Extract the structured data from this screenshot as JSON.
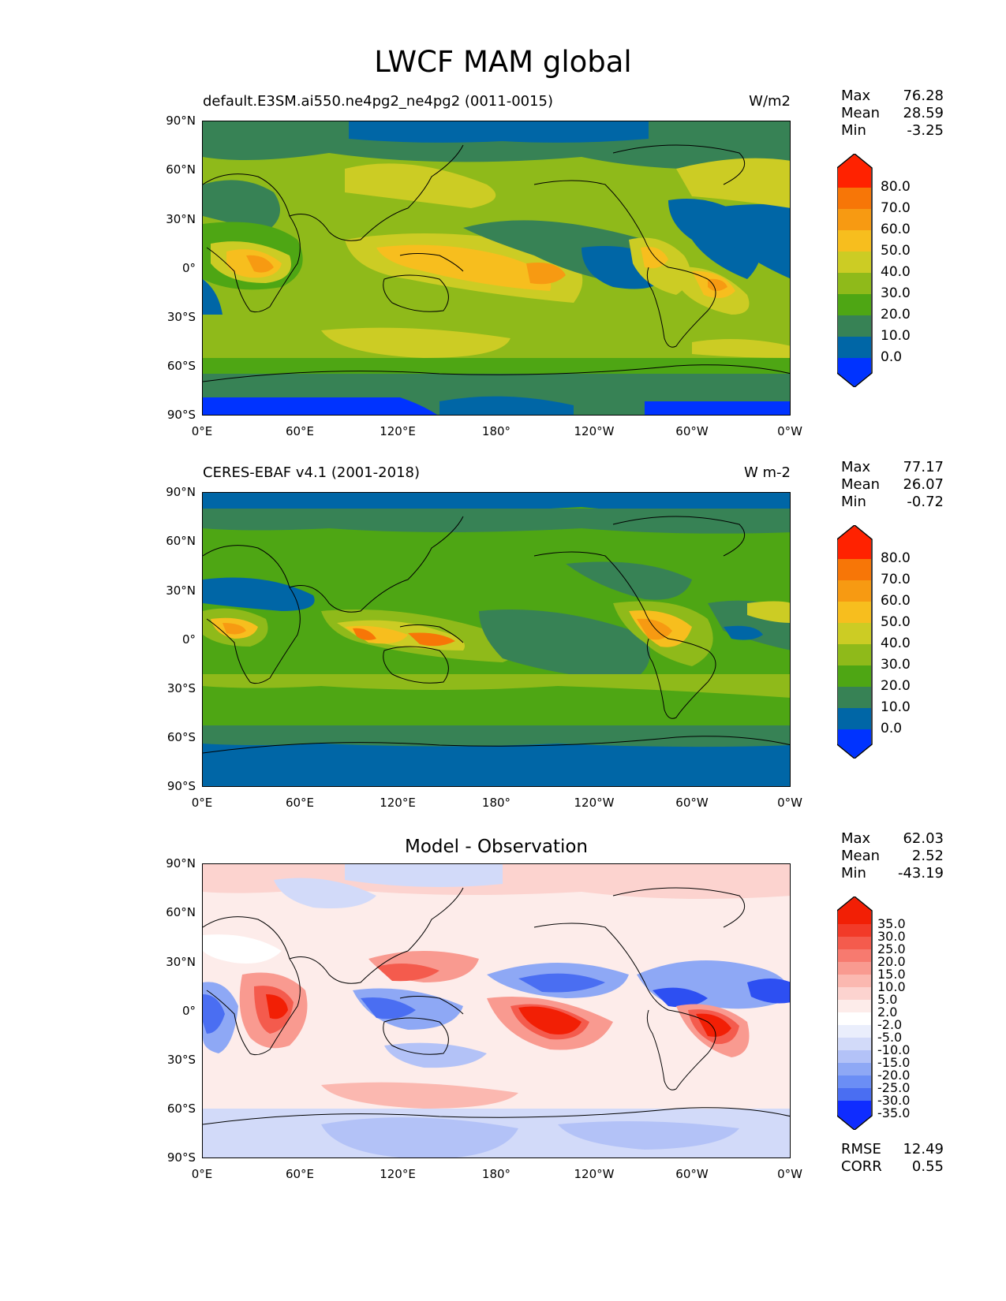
{
  "title": "LWCF MAM global",
  "lat_labels": [
    "90°N",
    "60°N",
    "30°N",
    "0°",
    "30°S",
    "60°S",
    "90°S"
  ],
  "lon_labels": [
    "0°E",
    "60°E",
    "120°E",
    "180°",
    "120°W",
    "60°W",
    "0°W"
  ],
  "panels": [
    {
      "subtitle_left": "default.E3SM.ai550.ne4pg2_ne4pg2 (0011-0015)",
      "subtitle_right": "W/m2",
      "stats": [
        {
          "label": "Max",
          "value": "76.28"
        },
        {
          "label": "Mean",
          "value": "28.59"
        },
        {
          "label": "Min",
          "value": "-3.25"
        }
      ],
      "colorbar_labels": [
        "80.0",
        "70.0",
        "60.0",
        "50.0",
        "40.0",
        "30.0",
        "20.0",
        "10.0",
        "0.0"
      ]
    },
    {
      "subtitle_left": "CERES-EBAF v4.1 (2001-2018)",
      "subtitle_right": "W m-2",
      "stats": [
        {
          "label": "Max",
          "value": "77.17"
        },
        {
          "label": "Mean",
          "value": "26.07"
        },
        {
          "label": "Min",
          "value": "-0.72"
        }
      ],
      "colorbar_labels": [
        "80.0",
        "70.0",
        "60.0",
        "50.0",
        "40.0",
        "30.0",
        "20.0",
        "10.0",
        "0.0"
      ]
    },
    {
      "subtitle_center": "Model - Observation",
      "stats": [
        {
          "label": "Max",
          "value": "62.03"
        },
        {
          "label": "Mean",
          "value": "2.52"
        },
        {
          "label": "Min",
          "value": "-43.19"
        }
      ],
      "colorbar_labels": [
        "35.0",
        "30.0",
        "25.0",
        "20.0",
        "15.0",
        "10.0",
        "5.0",
        "2.0",
        "-2.0",
        "-5.0",
        "-10.0",
        "-15.0",
        "-20.0",
        "-25.0",
        "-30.0",
        "-35.0"
      ],
      "metrics": [
        {
          "label": "RMSE",
          "value": "12.49"
        },
        {
          "label": "CORR",
          "value": "0.55"
        }
      ]
    }
  ],
  "colors": {
    "abs_scale": [
      "#0033ff",
      "#0066a6",
      "#378255",
      "#4ea614",
      "#8fba1a",
      "#cccc24",
      "#f7be1e",
      "#f79a12",
      "#f77607",
      "#ff2200"
    ],
    "diff_scale": [
      "#0f2cff",
      "#2d4ff2",
      "#4a6ef2",
      "#6b8ef5",
      "#8ea8f5",
      "#b3c2f7",
      "#d2daf9",
      "#eaeefc",
      "#ffffff",
      "#fdecea",
      "#fcd3cf",
      "#fbb8b0",
      "#f99a90",
      "#f77a6f",
      "#f45b4d",
      "#f23a28",
      "#f21f05"
    ]
  }
}
